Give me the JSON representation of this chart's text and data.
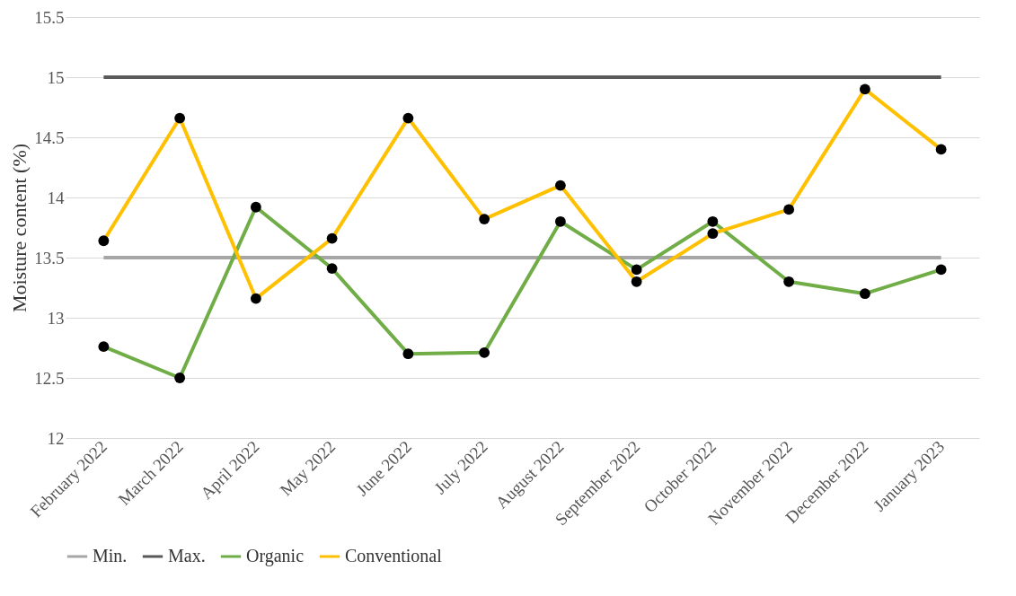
{
  "chart_data": {
    "type": "line",
    "ylabel": "Moisture content (%)",
    "categories": [
      "February 2022",
      "March 2022",
      "April 2022",
      "May 2022",
      "June 2022",
      "July 2022",
      "August 2022",
      "September 2022",
      "October 2022",
      "November 2022",
      "December 2022",
      "January 2023"
    ],
    "series": [
      {
        "name": "Min.",
        "color": "#a6a6a6",
        "marker": "none",
        "values": [
          13.5,
          13.5,
          13.5,
          13.5,
          13.5,
          13.5,
          13.5,
          13.5,
          13.5,
          13.5,
          13.5,
          13.5
        ]
      },
      {
        "name": "Max.",
        "color": "#595959",
        "marker": "none",
        "values": [
          15,
          15,
          15,
          15,
          15,
          15,
          15,
          15,
          15,
          15,
          15,
          15
        ]
      },
      {
        "name": "Organic",
        "color": "#70ad47",
        "marker": "circle",
        "values": [
          12.76,
          12.5,
          13.92,
          13.41,
          12.7,
          12.71,
          13.8,
          13.4,
          13.8,
          13.3,
          13.2,
          13.4
        ]
      },
      {
        "name": "Conventional",
        "color": "#ffc000",
        "marker": "circle",
        "values": [
          13.64,
          14.66,
          13.16,
          13.66,
          14.66,
          13.82,
          14.1,
          13.3,
          13.7,
          13.9,
          14.9,
          14.4
        ]
      }
    ],
    "ylim": [
      12,
      15.5
    ],
    "yticks": [
      12,
      12.5,
      13,
      13.5,
      14,
      14.5,
      15,
      15.5
    ],
    "grid": "y",
    "legend": "bottom",
    "line_style": "solid"
  }
}
